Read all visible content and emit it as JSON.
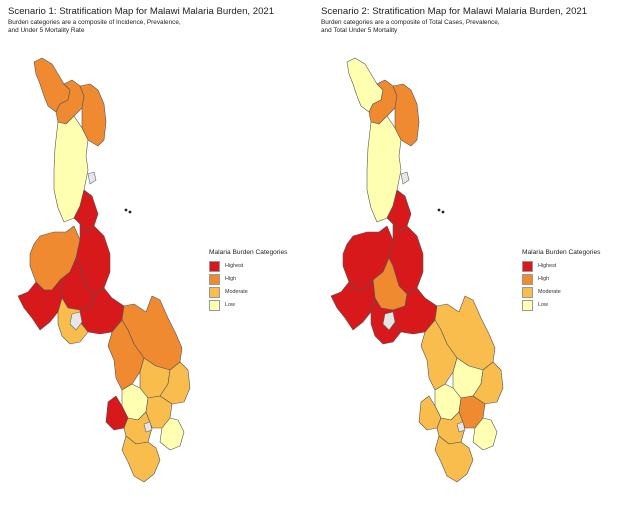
{
  "colors": {
    "highest": "#d7191c",
    "high": "#f08a31",
    "moderate": "#f9bd4e",
    "low": "#ffffb2",
    "lake": "#e6e6e6"
  },
  "legend": {
    "title": "Malaria Burden Categories",
    "items": [
      {
        "key": "highest",
        "label": "Highest"
      },
      {
        "key": "high",
        "label": "High"
      },
      {
        "key": "moderate",
        "label": "Moderate"
      },
      {
        "key": "low",
        "label": "Low"
      }
    ]
  },
  "scenario1": {
    "title": "Scenario 1: Stratification Map for Malawi Malaria Burden, 2021",
    "subtitle_line1": "Burden categories are a composite of Incidence, Prevalence,",
    "subtitle_line2": "and Under 5 Mortality Rate",
    "districts": {
      "north_tip": "high",
      "north_mid": "high",
      "north_east": "high",
      "north_south": "low",
      "nkhata_bay": "highest",
      "west_center": "high",
      "center_east": "highest",
      "center": "highest",
      "center_south": "highest",
      "far_west": "highest",
      "lake_side": "moderate",
      "south_upper": "high",
      "south_east": "high",
      "south_mid_a": "moderate",
      "south_mid_b": "moderate",
      "south_mid_c": "low",
      "south_west": "highest",
      "south_low_a": "moderate",
      "south_low_b": "moderate",
      "south_low_c": "low",
      "south_tip": "moderate"
    }
  },
  "scenario2": {
    "title": "Scenario 2: Stratification Map for Malawi Malaria Burden, 2021",
    "subtitle_line1": "Burden categories are a composite of Total Cases, Prevalence,",
    "subtitle_line2": "and Total Under 5 Mortality",
    "districts": {
      "north_tip": "low",
      "north_mid": "high",
      "north_east": "high",
      "north_south": "low",
      "nkhata_bay": "highest",
      "west_center": "highest",
      "center_east": "highest",
      "center": "high",
      "center_south": "highest",
      "far_west": "highest",
      "lake_side": "highest",
      "south_upper": "moderate",
      "south_east": "moderate",
      "south_mid_a": "low",
      "south_mid_b": "moderate",
      "south_mid_c": "low",
      "south_west": "moderate",
      "south_low_a": "high",
      "south_low_b": "moderate",
      "south_low_c": "low",
      "south_tip": "moderate"
    }
  }
}
